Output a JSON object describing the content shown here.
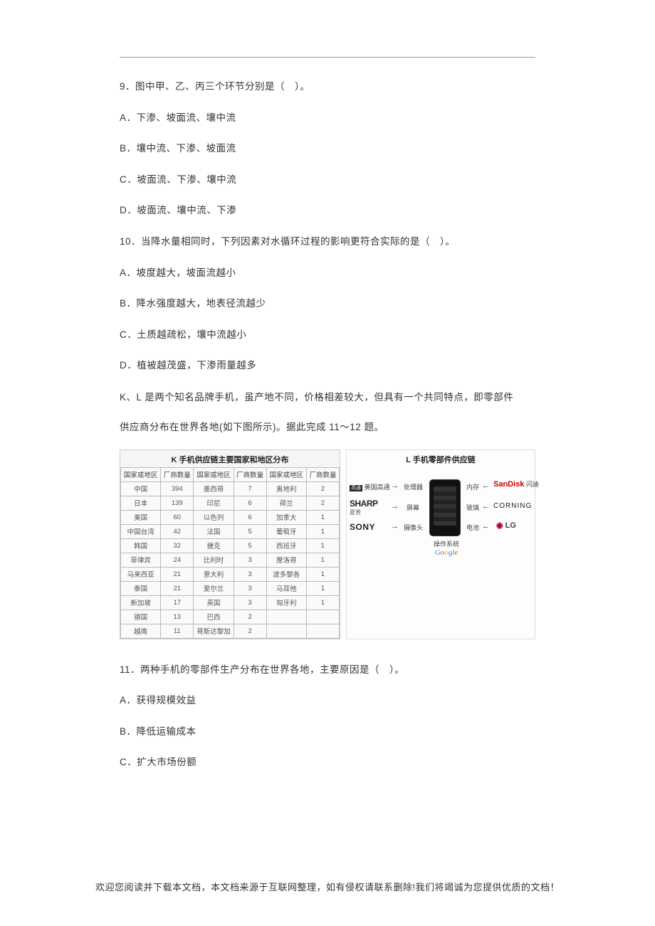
{
  "q9": {
    "stem": "9．图中甲、乙、丙三个环节分别是（　）。",
    "A": "A．下渗、坡面流、壤中流",
    "B": "B．壤中流、下渗、坡面流",
    "C": "C．坡面流、下渗、壤中流",
    "D": "D．坡面流、壤中流、下渗"
  },
  "q10": {
    "stem": "10．当降水量相同时，下列因素对水循环过程的影响更符合实际的是（　）。",
    "A": "A．坡度越大，坡面流越小",
    "B": "B．降水强度越大，地表径流越少",
    "C": "C．土质越疏松，壤中流越小",
    "D": "D．植被越茂盛，下渗雨量越多"
  },
  "intro1": "K、L 是两个知名品牌手机，虽产地不同，价格相差较大，但具有一个共同特点，即零部件",
  "intro2": "供应商分布在世界各地(如下图所示)。据此完成 11～12 题。",
  "tableK": {
    "title": "K 手机供应链主要国家和地区分布",
    "headers": [
      "国家或地区",
      "厂商数量",
      "国家或地区",
      "厂商数量",
      "国家或地区",
      "厂商数量"
    ],
    "rows": [
      [
        "中国",
        "394",
        "墨西哥",
        "7",
        "奥地利",
        "2"
      ],
      [
        "日本",
        "139",
        "印尼",
        "6",
        "荷兰",
        "2"
      ],
      [
        "美国",
        "60",
        "以色列",
        "6",
        "加拿大",
        "1"
      ],
      [
        "中国台湾",
        "42",
        "法国",
        "5",
        "葡萄牙",
        "1"
      ],
      [
        "韩国",
        "32",
        "捷克",
        "5",
        "西班牙",
        "1"
      ],
      [
        "菲律宾",
        "24",
        "比利时",
        "3",
        "摩洛哥",
        "1"
      ],
      [
        "马来西亚",
        "21",
        "意大利",
        "3",
        "波多黎各",
        "1"
      ],
      [
        "泰国",
        "21",
        "爱尔兰",
        "3",
        "马耳他",
        "1"
      ],
      [
        "新加坡",
        "17",
        "英国",
        "3",
        "匈牙利",
        "1"
      ],
      [
        "德国",
        "13",
        "巴西",
        "2",
        "",
        ""
      ],
      [
        "越南",
        "11",
        "哥斯达黎加",
        "2",
        "",
        ""
      ]
    ]
  },
  "diagL": {
    "title": "L 手机零部件供应链",
    "qualcomm_prefix": "美国高通",
    "processor": "处理器",
    "memory": "内存",
    "sandisk": "SanDisk",
    "sandisk_cn": "闪迪",
    "sharp": "SHARP",
    "sharp_cn": "夏普",
    "screen": "屏幕",
    "glass": "玻璃",
    "corning": "CORNING",
    "sony": "SONY",
    "camera": "摄像头",
    "battery": "电池",
    "lg": "LG",
    "os": "操作系统",
    "google": "Google"
  },
  "q11": {
    "stem": "11．两种手机的零部件生产分布在世界各地，主要原因是（　）。",
    "A": "A．获得规模效益",
    "B": "B．降低运输成本",
    "C": "C．扩大市场份额"
  },
  "footer": "欢迎您阅读并下载本文档，本文档来源于互联网整理，如有侵权请联系删除!我们将竭诚为您提供优质的文档！"
}
